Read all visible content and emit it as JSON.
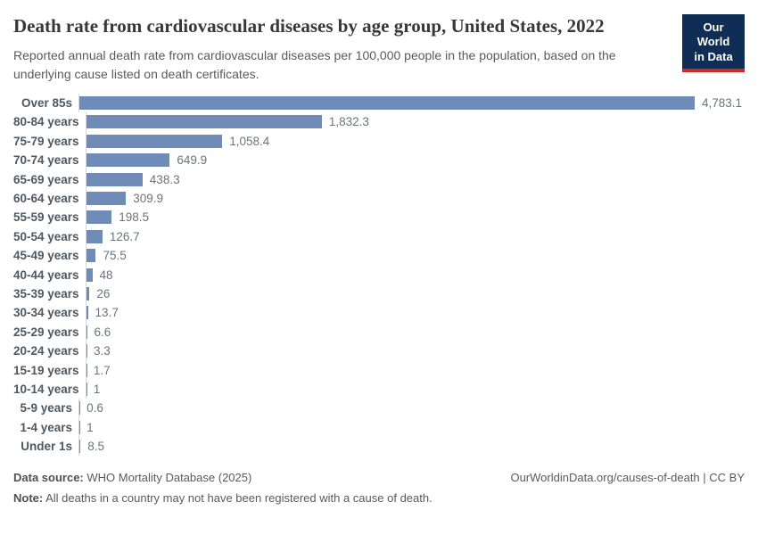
{
  "header": {
    "title": "Death rate from cardiovascular diseases by age group, United States, 2022",
    "subtitle": "Reported annual death rate from cardiovascular diseases per 100,000 people in the population, based on the underlying cause listed on death certificates."
  },
  "logo": {
    "line1": "Our World",
    "line2": "in Data",
    "bg_color": "#102d56",
    "stripe_color": "#cf2b23"
  },
  "chart_data": {
    "type": "bar",
    "orientation": "horizontal",
    "title": "Death rate from cardiovascular diseases by age group, United States, 2022",
    "categories": [
      "Over 85s",
      "80-84 years",
      "75-79 years",
      "70-74 years",
      "65-69 years",
      "60-64 years",
      "55-59 years",
      "50-54 years",
      "45-49 years",
      "40-44 years",
      "35-39 years",
      "30-34 years",
      "25-29 years",
      "20-24 years",
      "15-19 years",
      "10-14 years",
      "5-9 years",
      "1-4 years",
      "Under 1s"
    ],
    "values": [
      4783.1,
      1832.3,
      1058.4,
      649.9,
      438.3,
      309.9,
      198.5,
      126.7,
      75.5,
      48,
      26,
      13.7,
      6.6,
      3.3,
      1.7,
      1,
      0.6,
      1,
      8.5
    ],
    "value_labels": [
      "4,783.1",
      "1,832.3",
      "1,058.4",
      "649.9",
      "438.3",
      "309.9",
      "198.5",
      "126.7",
      "75.5",
      "48",
      "26",
      "13.7",
      "6.6",
      "3.3",
      "1.7",
      "1",
      "0.6",
      "1",
      "8.5"
    ],
    "xlabel": "",
    "ylabel": "",
    "xlim": [
      0,
      4783.1
    ],
    "grid": false,
    "legend": "none",
    "bar_color": "#6f8cb8"
  },
  "footer": {
    "source_label": "Data source:",
    "source_text": " WHO Mortality Database (2025)",
    "note_label": "Note:",
    "note_text": " All deaths in a country may not have been registered with a cause of death.",
    "right_text": "OurWorldinData.org/causes-of-death | CC BY"
  }
}
